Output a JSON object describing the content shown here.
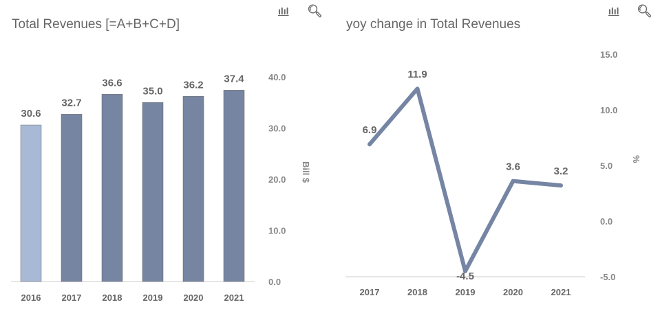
{
  "chart_data": [
    {
      "type": "bar",
      "title": "Total Revenues [=A+B+C+D]",
      "categories": [
        "2016",
        "2017",
        "2018",
        "2019",
        "2020",
        "2021"
      ],
      "values": [
        30.6,
        32.7,
        36.6,
        35.0,
        36.2,
        37.4
      ],
      "labels": [
        "30.6",
        "32.7",
        "36.6",
        "35.0",
        "36.2",
        "37.4"
      ],
      "ylabel": "Bill $",
      "ylim": [
        0,
        40
      ],
      "yticks": [
        "0.0",
        "10.0",
        "20.0",
        "30.0",
        "40.0"
      ],
      "colors": {
        "first": "#a8b9d6",
        "rest": "#7585a2"
      },
      "grid": false
    },
    {
      "type": "line",
      "title": "yoy change in Total Revenues",
      "categories": [
        "2017",
        "2018",
        "2019",
        "2020",
        "2021"
      ],
      "values": [
        6.9,
        11.9,
        -4.5,
        3.6,
        3.2
      ],
      "labels": [
        "6.9",
        "11.9",
        "-4.5",
        "3.6",
        "3.2"
      ],
      "ylabel": "%",
      "ylim": [
        -5,
        15
      ],
      "yticks": [
        "-5.0",
        "0.0",
        "5.0",
        "10.0",
        "15.0"
      ],
      "color": "#7585a3",
      "grid": false
    }
  ],
  "icons": {
    "chart": "bar-chart-icon",
    "search": "search-icon"
  }
}
